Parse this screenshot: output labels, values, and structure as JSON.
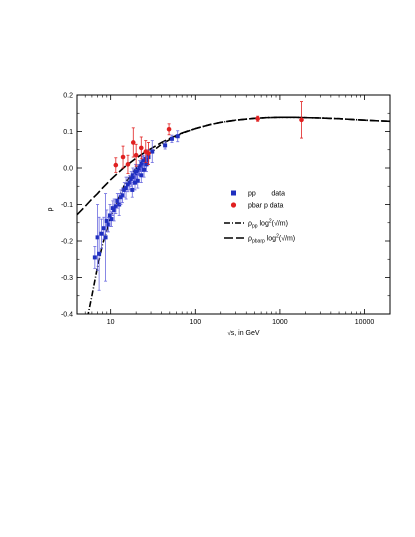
{
  "chart_data": {
    "type": "scatter",
    "xlabel_prefix": "√",
    "xlabel": "s, in GeV",
    "ylabel": "ρ",
    "xscale": "log",
    "xlim": [
      4,
      20000
    ],
    "ylim": [
      -0.4,
      0.2
    ],
    "x_ticks": [
      {
        "value": 10,
        "label": "10"
      },
      {
        "value": 100,
        "label": "100"
      },
      {
        "value": 1000,
        "label": "1000"
      },
      {
        "value": 10000,
        "label": "10000"
      }
    ],
    "y_ticks": [
      {
        "value": 0.2,
        "label": "0.2"
      },
      {
        "value": 0.1,
        "label": "0.1"
      },
      {
        "value": 0.0,
        "label": "0.0"
      },
      {
        "value": -0.1,
        "label": "-0.1"
      },
      {
        "value": -0.2,
        "label": "-0.2"
      },
      {
        "value": -0.3,
        "label": "-0.3"
      },
      {
        "value": -0.4,
        "label": "-0.4"
      }
    ],
    "grid": false,
    "legend_position": "right-middle",
    "series": [
      {
        "name": "pp        data",
        "kind": "points",
        "marker": "square",
        "color": "#1f2fbf",
        "errcolor": "#6a6adf",
        "points": [
          [
            6.5,
            -0.245,
            0.03
          ],
          [
            7.0,
            -0.19,
            0.09
          ],
          [
            7.3,
            -0.235,
            0.1
          ],
          [
            7.8,
            -0.18,
            0.04
          ],
          [
            8.3,
            -0.165,
            0.03
          ],
          [
            8.7,
            -0.19,
            0.12
          ],
          [
            9.0,
            -0.145,
            0.03
          ],
          [
            9.4,
            -0.155,
            0.02
          ],
          [
            9.8,
            -0.13,
            0.03
          ],
          [
            10.2,
            -0.14,
            0.02
          ],
          [
            10.6,
            -0.11,
            0.02
          ],
          [
            11.0,
            -0.115,
            0.03
          ],
          [
            11.5,
            -0.105,
            0.02
          ],
          [
            12.0,
            -0.09,
            0.02
          ],
          [
            12.6,
            -0.1,
            0.03
          ],
          [
            13.2,
            -0.08,
            0.02
          ],
          [
            13.8,
            -0.075,
            0.02
          ],
          [
            14.5,
            -0.06,
            0.02
          ],
          [
            15.2,
            -0.055,
            0.03
          ],
          [
            16.0,
            -0.045,
            0.02
          ],
          [
            16.8,
            -0.04,
            0.02
          ],
          [
            17.5,
            -0.03,
            0.02
          ],
          [
            18.3,
            -0.02,
            0.02
          ],
          [
            19.0,
            -0.025,
            0.02
          ],
          [
            19.7,
            -0.01,
            0.02
          ],
          [
            20.5,
            -0.015,
            0.02
          ],
          [
            21.3,
            -0.005,
            0.015
          ],
          [
            22.0,
            0.0,
            0.02
          ],
          [
            22.8,
            0.005,
            0.015
          ],
          [
            23.5,
            0.012,
            0.02
          ],
          [
            24.3,
            0.02,
            0.015
          ],
          [
            25.0,
            0.015,
            0.015
          ],
          [
            26.0,
            0.025,
            0.02
          ],
          [
            27.0,
            0.022,
            0.015
          ],
          [
            28.0,
            0.03,
            0.02
          ],
          [
            18.0,
            -0.06,
            0.02
          ],
          [
            19.4,
            -0.04,
            0.02
          ],
          [
            20.9,
            -0.035,
            0.02
          ],
          [
            23.0,
            -0.02,
            0.02
          ],
          [
            24.8,
            -0.005,
            0.02
          ],
          [
            26.5,
            0.01,
            0.02
          ],
          [
            31.0,
            0.045,
            0.03
          ],
          [
            44.0,
            0.062,
            0.01
          ],
          [
            53.0,
            0.08,
            0.01
          ],
          [
            62.0,
            0.087,
            0.015
          ]
        ]
      },
      {
        "name": "pbar p data",
        "kind": "points",
        "marker": "circle",
        "color": "#e02020",
        "errcolor": "#e02020",
        "points": [
          [
            11.5,
            0.008,
            0.02
          ],
          [
            14.0,
            0.03,
            0.03
          ],
          [
            16.0,
            0.01,
            0.025
          ],
          [
            18.5,
            0.07,
            0.04
          ],
          [
            20.0,
            0.035,
            0.03
          ],
          [
            23.0,
            0.055,
            0.03
          ],
          [
            26.0,
            0.045,
            0.03
          ],
          [
            28.0,
            0.04,
            0.03
          ],
          [
            49.0,
            0.106,
            0.015
          ],
          [
            546,
            0.135,
            0.007
          ],
          [
            1800,
            0.132,
            0.05
          ]
        ]
      },
      {
        "name": "ρ",
        "name_sub": "pp",
        "name_rest": " log",
        "name_sup": "2",
        "name_tail": "(√/m)",
        "kind": "line",
        "dash": "6,2,1,2",
        "color": "#000000",
        "points": [
          [
            5,
            -0.44
          ],
          [
            6,
            -0.35
          ],
          [
            7,
            -0.27
          ],
          [
            8,
            -0.21
          ],
          [
            10,
            -0.135
          ],
          [
            12,
            -0.09
          ],
          [
            15,
            -0.04
          ],
          [
            20,
            0.0
          ],
          [
            25,
            0.025
          ],
          [
            30,
            0.043
          ],
          [
            40,
            0.065
          ],
          [
            50,
            0.078
          ],
          [
            70,
            0.095
          ],
          [
            100,
            0.108
          ],
          [
            150,
            0.119
          ],
          [
            200,
            0.125
          ],
          [
            300,
            0.131
          ],
          [
            500,
            0.136
          ],
          [
            700,
            0.138
          ],
          [
            1000,
            0.139
          ],
          [
            1500,
            0.139
          ],
          [
            2000,
            0.138
          ],
          [
            3000,
            0.137
          ],
          [
            5000,
            0.135
          ],
          [
            7000,
            0.133
          ],
          [
            10000,
            0.131
          ],
          [
            15000,
            0.129
          ],
          [
            20000,
            0.128
          ]
        ]
      },
      {
        "name": "ρ",
        "name_sub": "pbarp",
        "name_rest": " log",
        "name_sup": "2",
        "name_tail": "(√/m)",
        "kind": "line",
        "dash": "9,3",
        "color": "#000000",
        "points": [
          [
            4,
            -0.128
          ],
          [
            5,
            -0.105
          ],
          [
            6,
            -0.085
          ],
          [
            7,
            -0.07
          ],
          [
            8,
            -0.055
          ],
          [
            10,
            -0.032
          ],
          [
            12,
            -0.015
          ],
          [
            15,
            0.005
          ],
          [
            20,
            0.027
          ],
          [
            25,
            0.042
          ],
          [
            30,
            0.053
          ],
          [
            40,
            0.07
          ],
          [
            50,
            0.081
          ],
          [
            70,
            0.096
          ],
          [
            100,
            0.108
          ],
          [
            150,
            0.119
          ],
          [
            200,
            0.125
          ],
          [
            300,
            0.131
          ],
          [
            500,
            0.136
          ],
          [
            700,
            0.138
          ],
          [
            1000,
            0.139
          ],
          [
            1500,
            0.139
          ],
          [
            2000,
            0.138
          ],
          [
            3000,
            0.137
          ],
          [
            5000,
            0.135
          ],
          [
            7000,
            0.133
          ],
          [
            10000,
            0.131
          ],
          [
            15000,
            0.129
          ],
          [
            20000,
            0.128
          ]
        ]
      }
    ]
  }
}
